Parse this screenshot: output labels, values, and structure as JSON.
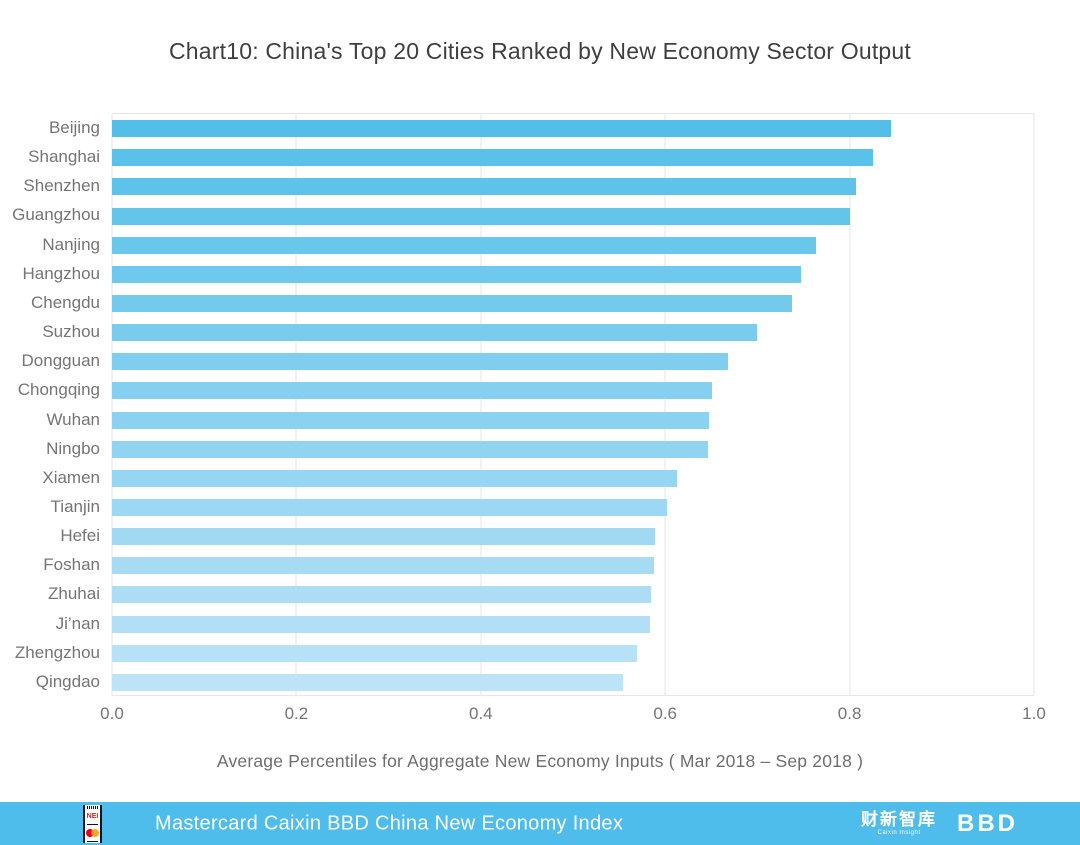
{
  "chart_data": {
    "type": "bar",
    "orientation": "horizontal",
    "title": "Chart10:  China's Top 20 Cities Ranked by New Economy Sector Output",
    "categories": [
      "Beijing",
      "Shanghai",
      "Shenzhen",
      "Guangzhou",
      "Nanjing",
      "Hangzhou",
      "Chengdu",
      "Suzhou",
      "Dongguan",
      "Chongqing",
      "Wuhan",
      "Ningbo",
      "Xiamen",
      "Tianjin",
      "Hefei",
      "Foshan",
      "Zhuhai",
      "Ji’nan",
      "Zhengzhou",
      "Qingdao"
    ],
    "values": [
      0.845,
      0.825,
      0.807,
      0.8,
      0.764,
      0.747,
      0.737,
      0.7,
      0.668,
      0.651,
      0.648,
      0.646,
      0.613,
      0.602,
      0.589,
      0.588,
      0.585,
      0.584,
      0.569,
      0.554
    ],
    "xlabel": "Average Percentiles for Aggregate New Economy Inputs ( Mar 2018 – Sep 2018 )",
    "xticks": [
      "0.0",
      "0.2",
      "0.4",
      "0.6",
      "0.8",
      "1.0"
    ],
    "xlim": [
      0,
      1
    ],
    "grid": "vertical",
    "legend": "none",
    "bar_colors": [
      "#53bfe9",
      "#59c1ea",
      "#5ec3ea",
      "#64c5eb",
      "#69c7ec",
      "#6fc8ed",
      "#74caed",
      "#7accee",
      "#80ceef",
      "#85d0f0",
      "#8bd2f0",
      "#90d4f1",
      "#96d6f2",
      "#9cd8f3",
      "#a1d9f3",
      "#a7dbf4",
      "#acddf5",
      "#b2dff6",
      "#b7e1f6",
      "#bde3f7"
    ]
  },
  "footer": {
    "band_color": "#4ebdec",
    "title": "Mastercard Caixin BBD China New Economy Index",
    "nei_badge_label": "NEI",
    "caixin_logo_text": "财新智库",
    "caixin_logo_subtext": "Caixin Insight",
    "bbd_logo_text": "BBD"
  }
}
